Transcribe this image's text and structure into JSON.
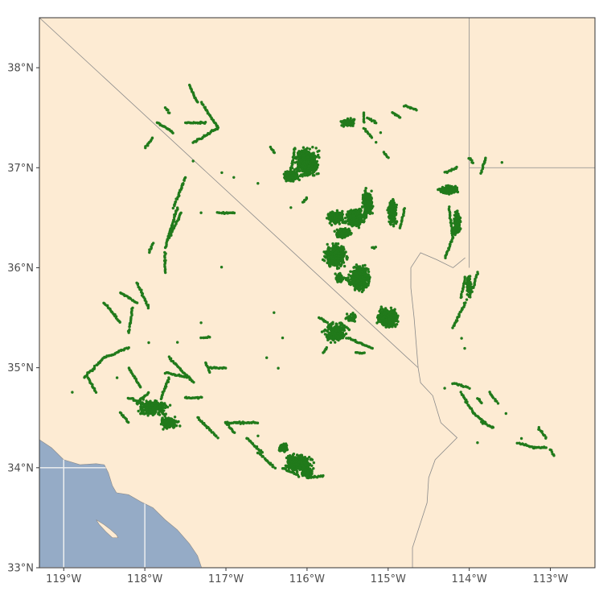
{
  "chart_data": {
    "type": "map-scatter",
    "colors": {
      "land": "#FDEBD3",
      "ocean": "#95ABC6",
      "points": "#217A1B",
      "border": "#8A8A8A",
      "graticule": "#F2F2F2",
      "frame": "#333333",
      "text": "#4D4D4D"
    },
    "extent": {
      "lon": [
        -119.3,
        -112.45
      ],
      "lat": [
        33.0,
        38.5
      ]
    },
    "x_ticks": [
      {
        "value": -119,
        "label": "119°W"
      },
      {
        "value": -118,
        "label": "118°W"
      },
      {
        "value": -117,
        "label": "117°W"
      },
      {
        "value": -116,
        "label": "116°W"
      },
      {
        "value": -115,
        "label": "115°W"
      },
      {
        "value": -114,
        "label": "114°W"
      },
      {
        "value": -113,
        "label": "113°W"
      }
    ],
    "y_ticks": [
      {
        "value": 33,
        "label": "33°N"
      },
      {
        "value": 34,
        "label": "34°N"
      },
      {
        "value": 35,
        "label": "35°N"
      },
      {
        "value": 36,
        "label": "36°N"
      },
      {
        "value": 37,
        "label": "37°N"
      },
      {
        "value": 38,
        "label": "38°N"
      }
    ],
    "coastline": [
      [
        -119.3,
        34.28
      ],
      [
        -119.15,
        34.2
      ],
      [
        -119.0,
        34.08
      ],
      [
        -118.8,
        34.03
      ],
      [
        -118.6,
        34.04
      ],
      [
        -118.5,
        34.03
      ],
      [
        -118.45,
        33.95
      ],
      [
        -118.4,
        33.82
      ],
      [
        -118.35,
        33.75
      ],
      [
        -118.2,
        33.73
      ],
      [
        -118.05,
        33.66
      ],
      [
        -117.9,
        33.6
      ],
      [
        -117.75,
        33.48
      ],
      [
        -117.6,
        33.38
      ],
      [
        -117.45,
        33.24
      ],
      [
        -117.35,
        33.12
      ],
      [
        -117.3,
        33.0
      ]
    ],
    "catalina_island": [
      [
        -118.6,
        33.48
      ],
      [
        -118.5,
        33.43
      ],
      [
        -118.42,
        33.38
      ],
      [
        -118.35,
        33.33
      ],
      [
        -118.33,
        33.3
      ],
      [
        -118.4,
        33.3
      ],
      [
        -118.48,
        33.36
      ],
      [
        -118.56,
        33.43
      ],
      [
        -118.6,
        33.48
      ]
    ],
    "state_borders": [
      [
        [
          -119.3,
          38.5
        ],
        [
          -114.63,
          35.0
        ]
      ],
      [
        [
          -114.0,
          38.5
        ],
        [
          -114.0,
          36.0
        ]
      ],
      [
        [
          -114.0,
          37.0
        ],
        [
          -112.45,
          37.0
        ]
      ],
      [
        [
          -114.63,
          35.0
        ],
        [
          -114.6,
          34.85
        ],
        [
          -114.45,
          34.72
        ],
        [
          -114.35,
          34.45
        ],
        [
          -114.15,
          34.3
        ],
        [
          -114.42,
          34.08
        ],
        [
          -114.5,
          33.9
        ],
        [
          -114.52,
          33.65
        ],
        [
          -114.6,
          33.45
        ],
        [
          -114.7,
          33.2
        ],
        [
          -114.7,
          33.0
        ]
      ],
      [
        [
          -114.05,
          36.1
        ],
        [
          -114.2,
          36.0
        ],
        [
          -114.4,
          36.08
        ],
        [
          -114.6,
          36.15
        ],
        [
          -114.72,
          36.0
        ],
        [
          -114.72,
          35.8
        ],
        [
          -114.68,
          35.5
        ],
        [
          -114.65,
          35.2
        ],
        [
          -114.63,
          35.0
        ]
      ]
    ],
    "point_segments": [
      [
        -117.45,
        37.82,
        -117.35,
        37.65
      ],
      [
        -117.3,
        37.65,
        -117.1,
        37.4
      ],
      [
        -117.1,
        37.4,
        -117.4,
        37.25
      ],
      [
        -117.5,
        37.45,
        -117.25,
        37.45
      ],
      [
        -117.85,
        37.45,
        -117.65,
        37.35
      ],
      [
        -117.75,
        37.6,
        -117.7,
        37.55
      ],
      [
        -118.0,
        37.2,
        -117.9,
        37.3
      ],
      [
        -117.4,
        37.07,
        -117.4,
        37.07
      ],
      [
        -117.5,
        36.9,
        -117.65,
        36.6
      ],
      [
        -117.6,
        36.6,
        -117.75,
        36.2
      ],
      [
        -117.75,
        36.15,
        -117.75,
        35.95
      ],
      [
        -117.7,
        36.3,
        -117.55,
        36.55
      ],
      [
        -117.9,
        36.25,
        -117.95,
        36.15
      ],
      [
        -118.1,
        35.85,
        -117.95,
        35.6
      ],
      [
        -118.3,
        35.75,
        -118.1,
        35.65
      ],
      [
        -118.15,
        35.6,
        -118.2,
        35.35
      ],
      [
        -118.5,
        35.65,
        -118.3,
        35.45
      ],
      [
        -118.2,
        35.2,
        -118.5,
        35.1
      ],
      [
        -118.5,
        35.1,
        -118.75,
        34.9
      ],
      [
        -118.7,
        34.9,
        -118.6,
        34.75
      ],
      [
        -118.9,
        34.75,
        -118.9,
        34.75
      ],
      [
        -118.2,
        35.0,
        -118.05,
        34.8
      ],
      [
        -118.35,
        34.9,
        -118.35,
        34.9
      ],
      [
        -117.75,
        34.95,
        -117.45,
        34.9
      ],
      [
        -117.7,
        35.1,
        -117.4,
        34.85
      ],
      [
        -117.6,
        35.25,
        -117.6,
        35.25
      ],
      [
        -117.95,
        35.25,
        -117.95,
        35.25
      ],
      [
        -117.2,
        35.0,
        -117.0,
        35.0
      ],
      [
        -117.25,
        35.05,
        -117.2,
        34.95
      ],
      [
        -117.7,
        34.9,
        -117.8,
        34.7
      ],
      [
        -117.5,
        34.7,
        -117.3,
        34.7
      ],
      [
        -118.1,
        34.65,
        -117.95,
        34.75
      ],
      [
        -117.35,
        34.5,
        -117.1,
        34.3
      ],
      [
        -117.0,
        34.45,
        -116.9,
        34.35
      ],
      [
        -118.2,
        34.7,
        -117.9,
        34.6
      ],
      [
        -118.3,
        34.55,
        -118.2,
        34.45
      ],
      [
        -117.2,
        35.3,
        -117.3,
        35.3
      ],
      [
        -117.3,
        35.45,
        -117.3,
        35.45
      ],
      [
        -117.05,
        36.0,
        -117.05,
        36.0
      ],
      [
        -117.1,
        36.55,
        -116.9,
        36.55
      ],
      [
        -117.3,
        36.55,
        -117.3,
        36.55
      ],
      [
        -117.05,
        36.95,
        -117.05,
        36.95
      ],
      [
        -116.9,
        36.9,
        -116.9,
        36.9
      ],
      [
        -116.6,
        36.85,
        -116.6,
        36.85
      ],
      [
        -116.4,
        35.55,
        -116.4,
        35.55
      ],
      [
        -116.3,
        35.3,
        -116.3,
        35.3
      ],
      [
        -117.0,
        34.45,
        -116.6,
        34.45
      ],
      [
        -116.75,
        34.3,
        -116.55,
        34.15
      ],
      [
        -116.6,
        34.15,
        -116.4,
        34.0
      ],
      [
        -116.3,
        34.0,
        -116.1,
        33.92
      ],
      [
        -116.0,
        33.9,
        -115.8,
        33.92
      ],
      [
        -116.6,
        34.32,
        -116.6,
        34.32
      ],
      [
        -116.5,
        35.1,
        -116.5,
        35.1
      ],
      [
        -115.7,
        35.4,
        -115.6,
        35.3
      ],
      [
        -115.85,
        35.5,
        -115.75,
        35.45
      ],
      [
        -115.4,
        35.15,
        -115.3,
        35.15
      ],
      [
        -115.8,
        35.15,
        -115.75,
        35.2
      ],
      [
        -115.3,
        37.55,
        -115.3,
        37.45
      ],
      [
        -115.25,
        37.5,
        -115.15,
        37.45
      ],
      [
        -115.3,
        37.4,
        -115.2,
        37.3
      ],
      [
        -115.1,
        37.35,
        -115.1,
        37.35
      ],
      [
        -115.15,
        37.25,
        -115.15,
        37.25
      ],
      [
        -114.95,
        37.55,
        -114.85,
        37.5
      ],
      [
        -114.8,
        37.62,
        -114.65,
        37.58
      ],
      [
        -116.45,
        37.2,
        -116.4,
        37.15
      ],
      [
        -116.15,
        37.2,
        -116.2,
        36.95
      ],
      [
        -114.3,
        36.95,
        -114.15,
        37.0
      ],
      [
        -113.8,
        37.1,
        -113.85,
        36.95
      ],
      [
        -113.6,
        37.05,
        -113.6,
        37.05
      ],
      [
        -114.0,
        37.1,
        -113.95,
        37.05
      ],
      [
        -114.25,
        36.6,
        -114.2,
        36.3
      ],
      [
        -114.2,
        36.3,
        -114.3,
        36.1
      ],
      [
        -114.05,
        35.9,
        -114.1,
        35.7
      ],
      [
        -114.05,
        35.65,
        -114.2,
        35.4
      ],
      [
        -113.9,
        35.95,
        -113.95,
        35.8
      ],
      [
        -114.1,
        35.3,
        -114.1,
        35.3
      ],
      [
        -114.05,
        35.2,
        -114.05,
        35.2
      ],
      [
        -114.1,
        34.75,
        -113.95,
        34.55
      ],
      [
        -113.95,
        34.55,
        -113.8,
        34.45
      ],
      [
        -113.85,
        34.45,
        -113.7,
        34.4
      ],
      [
        -113.9,
        34.25,
        -113.9,
        34.25
      ],
      [
        -113.75,
        34.75,
        -113.65,
        34.65
      ],
      [
        -113.55,
        34.55,
        -113.55,
        34.55
      ],
      [
        -113.4,
        34.25,
        -113.2,
        34.2
      ],
      [
        -113.2,
        34.2,
        -113.05,
        34.2
      ],
      [
        -113.15,
        34.4,
        -113.05,
        34.3
      ],
      [
        -113.0,
        34.18,
        -112.95,
        34.12
      ],
      [
        -113.35,
        34.3,
        -113.35,
        34.3
      ],
      [
        -114.3,
        34.8,
        -114.3,
        34.8
      ],
      [
        -114.2,
        34.85,
        -114.0,
        34.8
      ],
      [
        -113.9,
        34.7,
        -113.85,
        34.65
      ],
      [
        -115.5,
        35.3,
        -115.2,
        35.2
      ],
      [
        -115.6,
        35.45,
        -115.5,
        35.4
      ],
      [
        -116.35,
        35.0,
        -116.35,
        35.0
      ],
      [
        -114.8,
        36.6,
        -114.85,
        36.4
      ],
      [
        -115.05,
        37.15,
        -115.0,
        37.1
      ],
      [
        -115.15,
        36.2,
        -115.2,
        36.2
      ],
      [
        -116.05,
        36.65,
        -116.0,
        36.7
      ],
      [
        -116.2,
        36.6,
        -116.2,
        36.6
      ],
      [
        -115.55,
        35.9,
        -115.45,
        35.85
      ]
    ],
    "point_blobs": [
      [
        -116.0,
        37.05,
        0.18,
        0.18,
        550
      ],
      [
        -116.2,
        36.92,
        0.12,
        0.07,
        220
      ],
      [
        -115.65,
        36.5,
        0.12,
        0.08,
        220
      ],
      [
        -115.4,
        36.5,
        0.15,
        0.12,
        320
      ],
      [
        -115.25,
        36.65,
        0.08,
        0.15,
        260
      ],
      [
        -115.55,
        36.35,
        0.12,
        0.06,
        200
      ],
      [
        -114.95,
        36.55,
        0.07,
        0.15,
        220
      ],
      [
        -115.65,
        36.12,
        0.18,
        0.15,
        400
      ],
      [
        -115.35,
        35.9,
        0.15,
        0.15,
        500
      ],
      [
        -115.6,
        35.9,
        0.06,
        0.06,
        80
      ],
      [
        -115.0,
        35.5,
        0.16,
        0.12,
        450
      ],
      [
        -115.65,
        35.35,
        0.18,
        0.12,
        220
      ],
      [
        -115.45,
        35.5,
        0.08,
        0.06,
        60
      ],
      [
        -116.1,
        34.05,
        0.2,
        0.1,
        500
      ],
      [
        -116.3,
        34.2,
        0.08,
        0.05,
        80
      ],
      [
        -116.0,
        33.95,
        0.08,
        0.06,
        120
      ],
      [
        -117.9,
        34.6,
        0.25,
        0.1,
        220
      ],
      [
        -117.7,
        34.45,
        0.15,
        0.08,
        140
      ],
      [
        -114.25,
        36.78,
        0.15,
        0.05,
        220
      ],
      [
        -114.15,
        36.45,
        0.05,
        0.15,
        260
      ],
      [
        -115.5,
        37.45,
        0.1,
        0.05,
        120
      ],
      [
        -114.0,
        35.8,
        0.05,
        0.15,
        80
      ]
    ]
  }
}
